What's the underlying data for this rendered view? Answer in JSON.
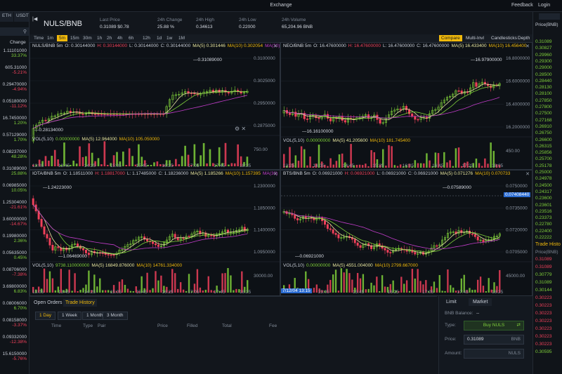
{
  "window": {
    "title": "Exchange",
    "feedback": "Feedback",
    "login": "Login"
  },
  "left": {
    "tabs": [
      "ETH",
      "USDT"
    ],
    "change_header": "Change",
    "rows": [
      {
        "price": "1.11101000",
        "change": "33.37%",
        "dir": "up"
      },
      {
        "price": "605.31000",
        "change": "-5.21%",
        "dir": "dn"
      },
      {
        "price": "0.29470000",
        "change": "-4.94%",
        "dir": "dn"
      },
      {
        "price": "0.05180000",
        "change": "-11.12%",
        "dir": "dn"
      },
      {
        "price": "16.7450000",
        "change": "1.20%",
        "dir": "up"
      },
      {
        "price": "0.57129000",
        "change": "1.70%",
        "dir": "up"
      },
      {
        "price": "0.08237000",
        "change": "48.28%",
        "dir": "up"
      },
      {
        "price": "0.31089000",
        "change": "25.88%",
        "dir": "up"
      },
      {
        "price": "0.06985000",
        "change": "10.05%",
        "dir": "up"
      },
      {
        "price": "1.25304000",
        "change": "-21.61%",
        "dir": "dn"
      },
      {
        "price": "3.60000000",
        "change": "-14.67%",
        "dir": "dn"
      },
      {
        "price": "0.19980000",
        "change": "2.36%",
        "dir": "up"
      },
      {
        "price": "0.05635000",
        "change": "0.45%",
        "dir": "up"
      },
      {
        "price": "0.08706000",
        "change": "-7.38%",
        "dir": "dn"
      },
      {
        "price": "3.69800000",
        "change": "6.83%",
        "dir": "up"
      },
      {
        "price": "0.08006000",
        "change": "6.70%",
        "dir": "up"
      },
      {
        "price": "0.08158000",
        "change": "-3.37%",
        "dir": "dn"
      },
      {
        "price": "0.09332000",
        "change": "-12.38%",
        "dir": "dn"
      },
      {
        "price": "15.6150000",
        "change": "-5.76%",
        "dir": "dn"
      }
    ]
  },
  "ticker": {
    "pair": "NULS/BNB",
    "last_price_label": "Last Price",
    "last_price": "0.31089 $0.78",
    "change_label": "24h Change",
    "change": "25.88 %",
    "high_label": "24h High",
    "high": "0.34613",
    "low_label": "24h Low",
    "low": "0.22000",
    "volume_label": "24h Volume",
    "volume": "65,204.96 BNB"
  },
  "toolbar": {
    "intervals": [
      "Time",
      "1m",
      "5m",
      "15m",
      "30m",
      "1h",
      "2h",
      "4h",
      "6h",
      "12h",
      "1d",
      "1w",
      "1M"
    ],
    "active_interval": "5m",
    "buttons": [
      "Compare",
      "Multi-Invl",
      "Candlesticks",
      "Depth"
    ]
  },
  "charts": [
    {
      "header": {
        "sym": "NULS/BNB 5m",
        "o": "O: 0.30144000",
        "h": "H: 0.30144000",
        "l": "L: 0.30144000",
        "c": "C: 0.30144000",
        "ma5": "MA(5) 0.301446",
        "ma10": "MA(10) 0.302054",
        "ma30": "MA(30)"
      },
      "prices": [
        "0.3100000",
        "0.3025000",
        "0.2950000",
        "0.2875000"
      ],
      "hi_label": "0.31089000",
      "lo_label": "0.28134000",
      "vol": {
        "label": "VOL(5,10)",
        "v": "0.00000000",
        "ma5": "MA(5) 12.964000",
        "ma10": "MA(10) 105.050000"
      },
      "vol_axis": "750.00",
      "times": [
        "13:05",
        "13:45",
        "14:25",
        "15:05",
        "15:45",
        "16:25",
        "17:05",
        "17:45",
        "18:25"
      ]
    },
    {
      "header": {
        "sym": "NEO/BNB 5m",
        "o": "O: 16.47600000",
        "h": "H: 16.47600000",
        "l": "L: 16.47600000",
        "c": "C: 16.47600000",
        "ma5": "MA(5) 16.433400",
        "ma10": "MA(10) 16.456400"
      },
      "prices": [
        "16.8000000",
        "16.6000000",
        "16.4000000",
        "16.2000000"
      ],
      "hi_label": "16.97900000",
      "lo_label": "16.16100000",
      "vol": {
        "label": "VOL(5,10)",
        "v": "0.00000000",
        "ma5": "MA(5) 41.205600",
        "ma10": "MA(10) 181.745400"
      },
      "vol_axis": "450.00",
      "times": [
        "13:25",
        "14:05",
        "14:45",
        "15:25",
        "16:05",
        "16:45",
        "17:25",
        "18:05"
      ]
    },
    {
      "header": {
        "sym": "IOTA/BNB 5m",
        "o": "O: 1.18511000",
        "h": "H: 1.18817000",
        "l": "L: 1.17485000",
        "c": "C: 1.18236000",
        "ma5": "MA(5) 1.185266",
        "ma10": "MA(10) 1.157395",
        "ma30": "MA(30)"
      },
      "prices": [
        "1.2300000",
        "1.1850000",
        "1.1400000",
        "1.0950000"
      ],
      "hi_label": "1.24223000",
      "lo_label": "1.06469000",
      "vol": {
        "label": "VOL(5,10)",
        "v": "9738.110000000",
        "ma5": "MA(5) 16849.876000",
        "ma10": "MA(10) 14761.334000"
      },
      "vol_axis": "30000.00",
      "times": [
        "13:05",
        "13:45",
        "14:25",
        "15:05",
        "15:45",
        "16:25",
        "17:05",
        "17:45",
        "18:25"
      ]
    },
    {
      "header": {
        "sym": "BTS/BNB 5m",
        "o": "O: 0.06921000",
        "h": "H: 0.06921000",
        "l": "L: 0.06921000",
        "c": "C: 0.06921000",
        "ma5": "MA(5) 0.071276",
        "ma10": "MA(10) 0.070733"
      },
      "prices": [
        "0.0750000",
        "0.0735000",
        "0.0720000",
        "0.0705000"
      ],
      "cursor_price": "0.07408440",
      "hi_label": "0.07589000",
      "lo_label": "0.06921000",
      "vol": {
        "label": "VOL(5,10)",
        "v": "0.00000000",
        "ma5": "MA(5) 4551.004000",
        "ma10": "MA(10) 2799.667000"
      },
      "vol_axis": "45000.00",
      "cursor_time": "7/12/04 13:15",
      "times": [
        "14:25",
        "15:05",
        "15:45",
        "16:25",
        "17:05",
        "17:45",
        "18:25"
      ]
    }
  ],
  "orders": {
    "tabs": [
      "Open Orders",
      "Trade History"
    ],
    "active_tab": "Trade History",
    "periods": [
      "1 Day",
      "1 Week",
      "1 Month",
      "3 Month"
    ],
    "active_period": "1 Day",
    "columns": [
      "Time",
      "Type",
      "Pair",
      "Price",
      "Filled",
      "Total",
      "Fee"
    ]
  },
  "trade": {
    "tabs": [
      "Limit",
      "Market"
    ],
    "active_tab": "Limit",
    "balance_label": "BNB Balance:",
    "balance": "--",
    "type_label": "Type:",
    "type_value": "Buy NULS",
    "price_label": "Price:",
    "price": "0.31089",
    "price_unit": "BNB",
    "amount_label": "Amount:",
    "amount_unit": "NULS"
  },
  "orderbook": {
    "header": "Price(BNB)",
    "prices": [
      "0.31089",
      "0.30827",
      "0.29960",
      "0.29300",
      "0.29000",
      "0.28500",
      "0.28440",
      "0.28130",
      "0.28100",
      "0.27850",
      "0.27800",
      "0.27500",
      "0.27168",
      "0.26910",
      "0.26750",
      "0.26600",
      "0.26315",
      "0.25856",
      "0.25700",
      "0.25178",
      "0.25000",
      "0.24978",
      "0.24500",
      "0.24317",
      "0.23600",
      "0.23601",
      "0.23516",
      "0.23373",
      "0.22780",
      "0.22400",
      "0.22222"
    ],
    "history_header": "Trade Histo",
    "history_col": "Price(BNB)",
    "history": [
      {
        "p": "0.31089",
        "d": "dn"
      },
      {
        "p": "0.31089",
        "d": "dn"
      },
      {
        "p": "0.30779",
        "d": "up"
      },
      {
        "p": "0.31089",
        "d": "up"
      },
      {
        "p": "0.30144",
        "d": "up"
      },
      {
        "p": "0.30223",
        "d": "dn"
      },
      {
        "p": "0.30223",
        "d": "dn"
      },
      {
        "p": "0.30223",
        "d": "dn"
      },
      {
        "p": "0.30223",
        "d": "dn"
      },
      {
        "p": "0.30223",
        "d": "dn"
      },
      {
        "p": "0.30223",
        "d": "dn"
      },
      {
        "p": "0.30223",
        "d": "dn"
      },
      {
        "p": "0.30595",
        "d": "up"
      }
    ]
  },
  "colors": {
    "up": "#7fcf3a",
    "down": "#f0405a",
    "accent": "#f0b90b",
    "ma5": "#e8e6a0",
    "ma10": "#7fcf3a",
    "ma30": "#c03cc8"
  }
}
